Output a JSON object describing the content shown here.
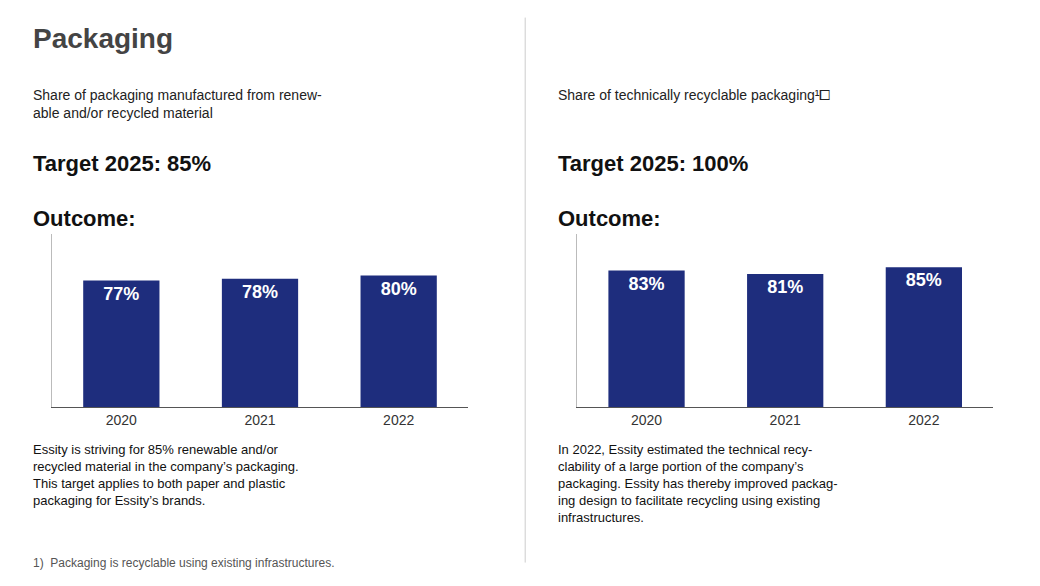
{
  "title": "Packaging",
  "chart_data": [
    {
      "type": "bar",
      "subtitle": "Share of packaging manufactured from renew-\nable and/or recycled material",
      "annotations": [
        "Target 2025: 85%",
        "Outcome:",
        "Essity is striving for 85% renewable and/or\nrecycled material in the company’s packaging.\nThis target applies to both paper and plastic\npackaging for Essity’s brands.",
        "1)  Packaging is recyclable using existing infrastructures."
      ],
      "categories": [
        "2020",
        "2021",
        "2022"
      ],
      "values": [
        77,
        78,
        80
      ],
      "value_labels": [
        "77%",
        "78%",
        "80%"
      ],
      "data_labels": true,
      "color": "#1e2d7d",
      "ylim": [
        0,
        105
      ],
      "grid": false,
      "tick_labels": "x"
    },
    {
      "type": "bar",
      "subtitle": "Share of technically recyclable packaging¹⧠",
      "annotations": [
        "Target 2025: 100%",
        "Outcome:",
        "In 2022, Essity estimated the technical recy-\nclability of a large portion of the company’s\npackaging. Essity has thereby improved packag-\ning design to facilitate recycling using existing\ninfrastructures."
      ],
      "categories": [
        "2020",
        "2021",
        "2022"
      ],
      "values": [
        83,
        81,
        85
      ],
      "value_labels": [
        "83%",
        "81%",
        "85%"
      ],
      "data_labels": true,
      "color": "#1e2d7d",
      "ylim": [
        0,
        105
      ],
      "grid": false,
      "tick_labels": "x"
    }
  ]
}
